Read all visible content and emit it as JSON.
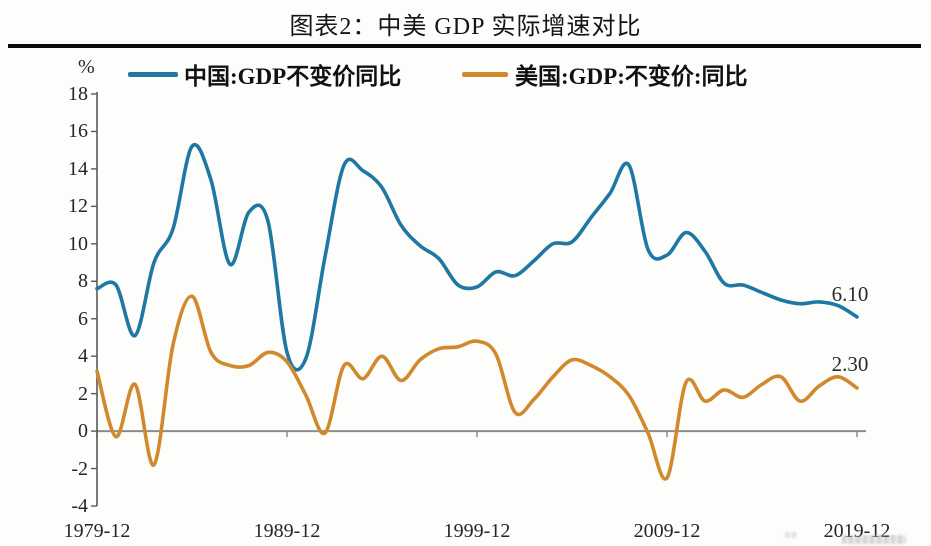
{
  "header": {
    "title": "图表2：中美 GDP 实际增速对比"
  },
  "legend": [
    {
      "label": "中国:GDP不变价同比",
      "color": "#1F78A4"
    },
    {
      "label": "美国:GDP:不变价:同比",
      "color": "#D1892E"
    }
  ],
  "axes": {
    "unit_label": "%",
    "y_ticks": [
      18,
      16,
      14,
      12,
      10,
      8,
      6,
      4,
      2,
      0,
      -2,
      -4
    ],
    "x_tick_labels": [
      "1979-12",
      "1989-12",
      "1999-12",
      "2009-12",
      "2019-12"
    ],
    "axis_color": "#595959",
    "zero_line_color": "#8c8c8c"
  },
  "end_labels": {
    "china": "6.10",
    "us": "2.30"
  },
  "chart_data": {
    "type": "line",
    "title": "图表2：中美 GDP 实际增速对比",
    "ylabel": "%",
    "ylim": [
      -4,
      18
    ],
    "x": [
      1979,
      1980,
      1981,
      1982,
      1983,
      1984,
      1985,
      1986,
      1987,
      1988,
      1989,
      1990,
      1991,
      1992,
      1993,
      1994,
      1995,
      1996,
      1997,
      1998,
      1999,
      2000,
      2001,
      2002,
      2003,
      2004,
      2005,
      2006,
      2007,
      2008,
      2009,
      2010,
      2011,
      2012,
      2013,
      2014,
      2015,
      2016,
      2017,
      2018,
      2019
    ],
    "x_tick_years": [
      1979,
      1989,
      1999,
      2009,
      2019
    ],
    "x_tick_labels": [
      "1979-12",
      "1989-12",
      "1999-12",
      "2009-12",
      "2019-12"
    ],
    "grid": false,
    "legend_position": "top",
    "series": [
      {
        "name": "中国:GDP不变价同比",
        "color": "#1F78A4",
        "end_label": "6.10",
        "values": [
          7.6,
          7.8,
          5.1,
          9.0,
          10.8,
          15.2,
          13.4,
          8.9,
          11.7,
          11.2,
          4.2,
          3.9,
          9.3,
          14.2,
          13.9,
          13.0,
          11.0,
          9.9,
          9.2,
          7.8,
          7.7,
          8.5,
          8.3,
          9.1,
          10.0,
          10.1,
          11.4,
          12.7,
          14.2,
          9.7,
          9.4,
          10.6,
          9.6,
          7.9,
          7.8,
          7.4,
          7.0,
          6.8,
          6.9,
          6.7,
          6.1
        ]
      },
      {
        "name": "美国:GDP:不变价:同比",
        "color": "#D1892E",
        "end_label": "2.30",
        "values": [
          3.2,
          -0.3,
          2.5,
          -1.8,
          4.6,
          7.2,
          4.2,
          3.5,
          3.5,
          4.2,
          3.7,
          1.9,
          -0.1,
          3.5,
          2.8,
          4.0,
          2.7,
          3.8,
          4.4,
          4.5,
          4.8,
          4.1,
          1.0,
          1.7,
          2.9,
          3.8,
          3.5,
          2.9,
          1.9,
          -0.1,
          -2.5,
          2.6,
          1.6,
          2.2,
          1.8,
          2.5,
          2.9,
          1.6,
          2.4,
          2.9,
          2.3
        ]
      }
    ]
  }
}
